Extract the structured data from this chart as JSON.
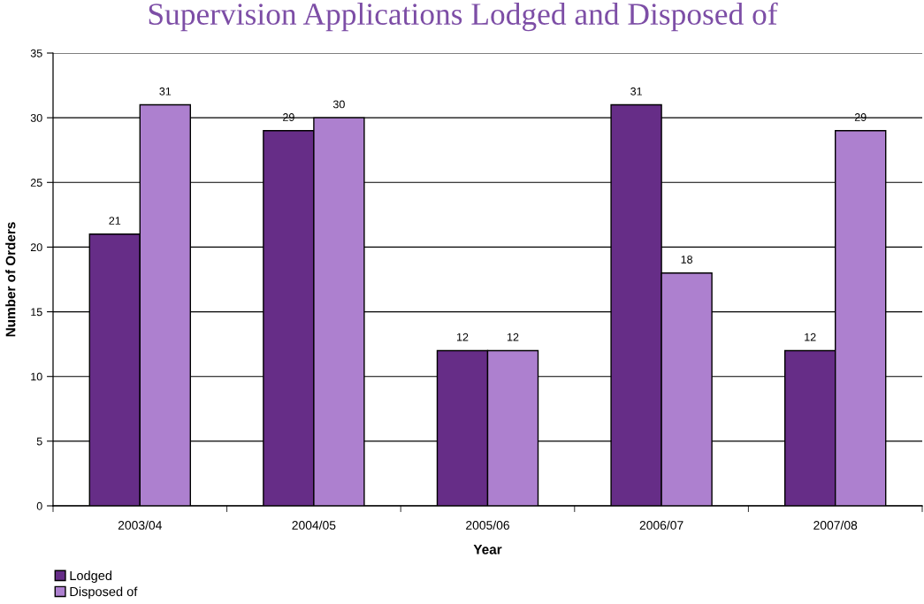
{
  "chart_data": {
    "type": "bar",
    "title": "Supervision Applications Lodged and Disposed of",
    "xlabel": "Year",
    "ylabel": "Number of Orders",
    "categories": [
      "2003/04",
      "2004/05",
      "2005/06",
      "2006/07",
      "2007/08"
    ],
    "series": [
      {
        "name": "Lodged",
        "color": "#662d87",
        "values": [
          21,
          29,
          12,
          31,
          12
        ]
      },
      {
        "name": "Disposed of",
        "color": "#ad80cf",
        "values": [
          31,
          30,
          12,
          18,
          29
        ]
      }
    ],
    "ylim": [
      0,
      35
    ],
    "yticks": [
      0,
      5,
      10,
      15,
      20,
      25,
      30,
      35
    ],
    "grid": "y",
    "legend": "bottom left",
    "data_labels": true
  }
}
